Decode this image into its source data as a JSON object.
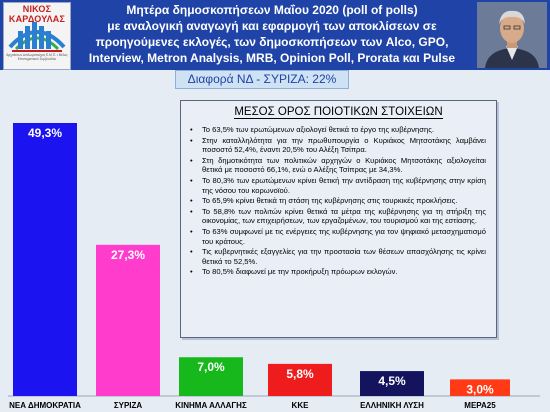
{
  "header": {
    "logo_name": "ΝΙΚΟΣ ΚΑΡΔΟΥΛΑΣ",
    "logo_subtitle": "Αρχιτέκτων Διπλωματούχος Ε.Μ.Π. • Μέλος Επιστημονικού Συμβουλίου",
    "title_line1": "Μητέρα δημοσκοπήσεων Μαΐου 2020 (poll of polls)",
    "title_line2": "με αναλογική αναγωγή και εφαρμογή των αποκλίσεων σε",
    "title_line3": "προηγούμενες εκλογές, των δημοσκοπήσεων των Alco, GPO,",
    "title_line4": "Interview, Metron Analysis, MRB, Opinion Poll, Prorata και Pulse"
  },
  "difference_banner": "Διαφορά ΝΔ - ΣΥΡΙΖΑ: 22%",
  "info_box": {
    "title": "ΜΕΣΟΣ ΟΡΟΣ ΠΟΙΟΤΙΚΩΝ ΣΤΟΙΧΕΙΩΝ",
    "items": [
      "Το 63,5% των ερωτώμενων αξιολογεί θετικά το έργο της κυβέρνησης.",
      "Στην καταλληλότητα για την πρωθυπουργία ο Κυριάκος Μητσοτάκης λαμβάνει ποσοστό 52,4%, έναντι 20,5% του Αλέξη Τσίπρα.",
      "Στη δημοτικότητα των πολιτικών αρχηγών ο Κυριάκος Μητσοτάκης αξιολογείται θετικά με ποσοστό 66,1%, ενώ ο Αλέξης Τσίπρας με 34,3%.",
      "Το 80,3% των ερωτώμενων κρίνει θετική την αντίδραση της κυβέρνησης στην κρίση της νόσου του κορωνοϊού.",
      "Το 65,9% κρίνει θετικά τη στάση της κυβέρνησης στις τουρκικές προκλήσεις.",
      "Το 58,8% των πολιτών κρίνει θετικά τα μέτρα της κυβέρνησης για τη στήριξη της οικονομίας, των επιχειρήσεων, των εργαζομένων, του τουρισμού και της εστίασης.",
      "Το 63% συμφωνεί με τις ενέργειες της κυβέρνησης για τον ψηφιακό μετασχηματισμό του κράτους.",
      "Τις κυβερνητικές εξαγγελίες για την προστασία των θέσεων απασχόλησης τις κρίνει θετικά το 52,5%.",
      "Το 80,5% διαφωνεί με την προκήρυξη πρόωρων εκλογών."
    ]
  },
  "chart_data": {
    "type": "bar",
    "categories": [
      "ΝΕΑ ΔΗΜΟΚΡΑΤΙΑ",
      "ΣΥΡΙΖΑ",
      "ΚΙΝΗΜΑ ΑΛΛΑΓΗΣ",
      "ΚΚΕ",
      "ΕΛΛΗΝΙΚΗ ΛΥΣΗ",
      "ΜΕΡΑ25"
    ],
    "values": [
      49.3,
      27.3,
      7.0,
      5.8,
      4.5,
      3.0
    ],
    "value_labels": [
      "49,3%",
      "27,3%",
      "7,0%",
      "5,8%",
      "4,5%",
      "3,0%"
    ],
    "colors": [
      "#1c14f0",
      "#ff3ccc",
      "#16b81c",
      "#ee1c1c",
      "#14145e",
      "#ff3a14"
    ],
    "title": "",
    "xlabel": "",
    "ylabel": "",
    "ylim": [
      0,
      49.3
    ]
  }
}
